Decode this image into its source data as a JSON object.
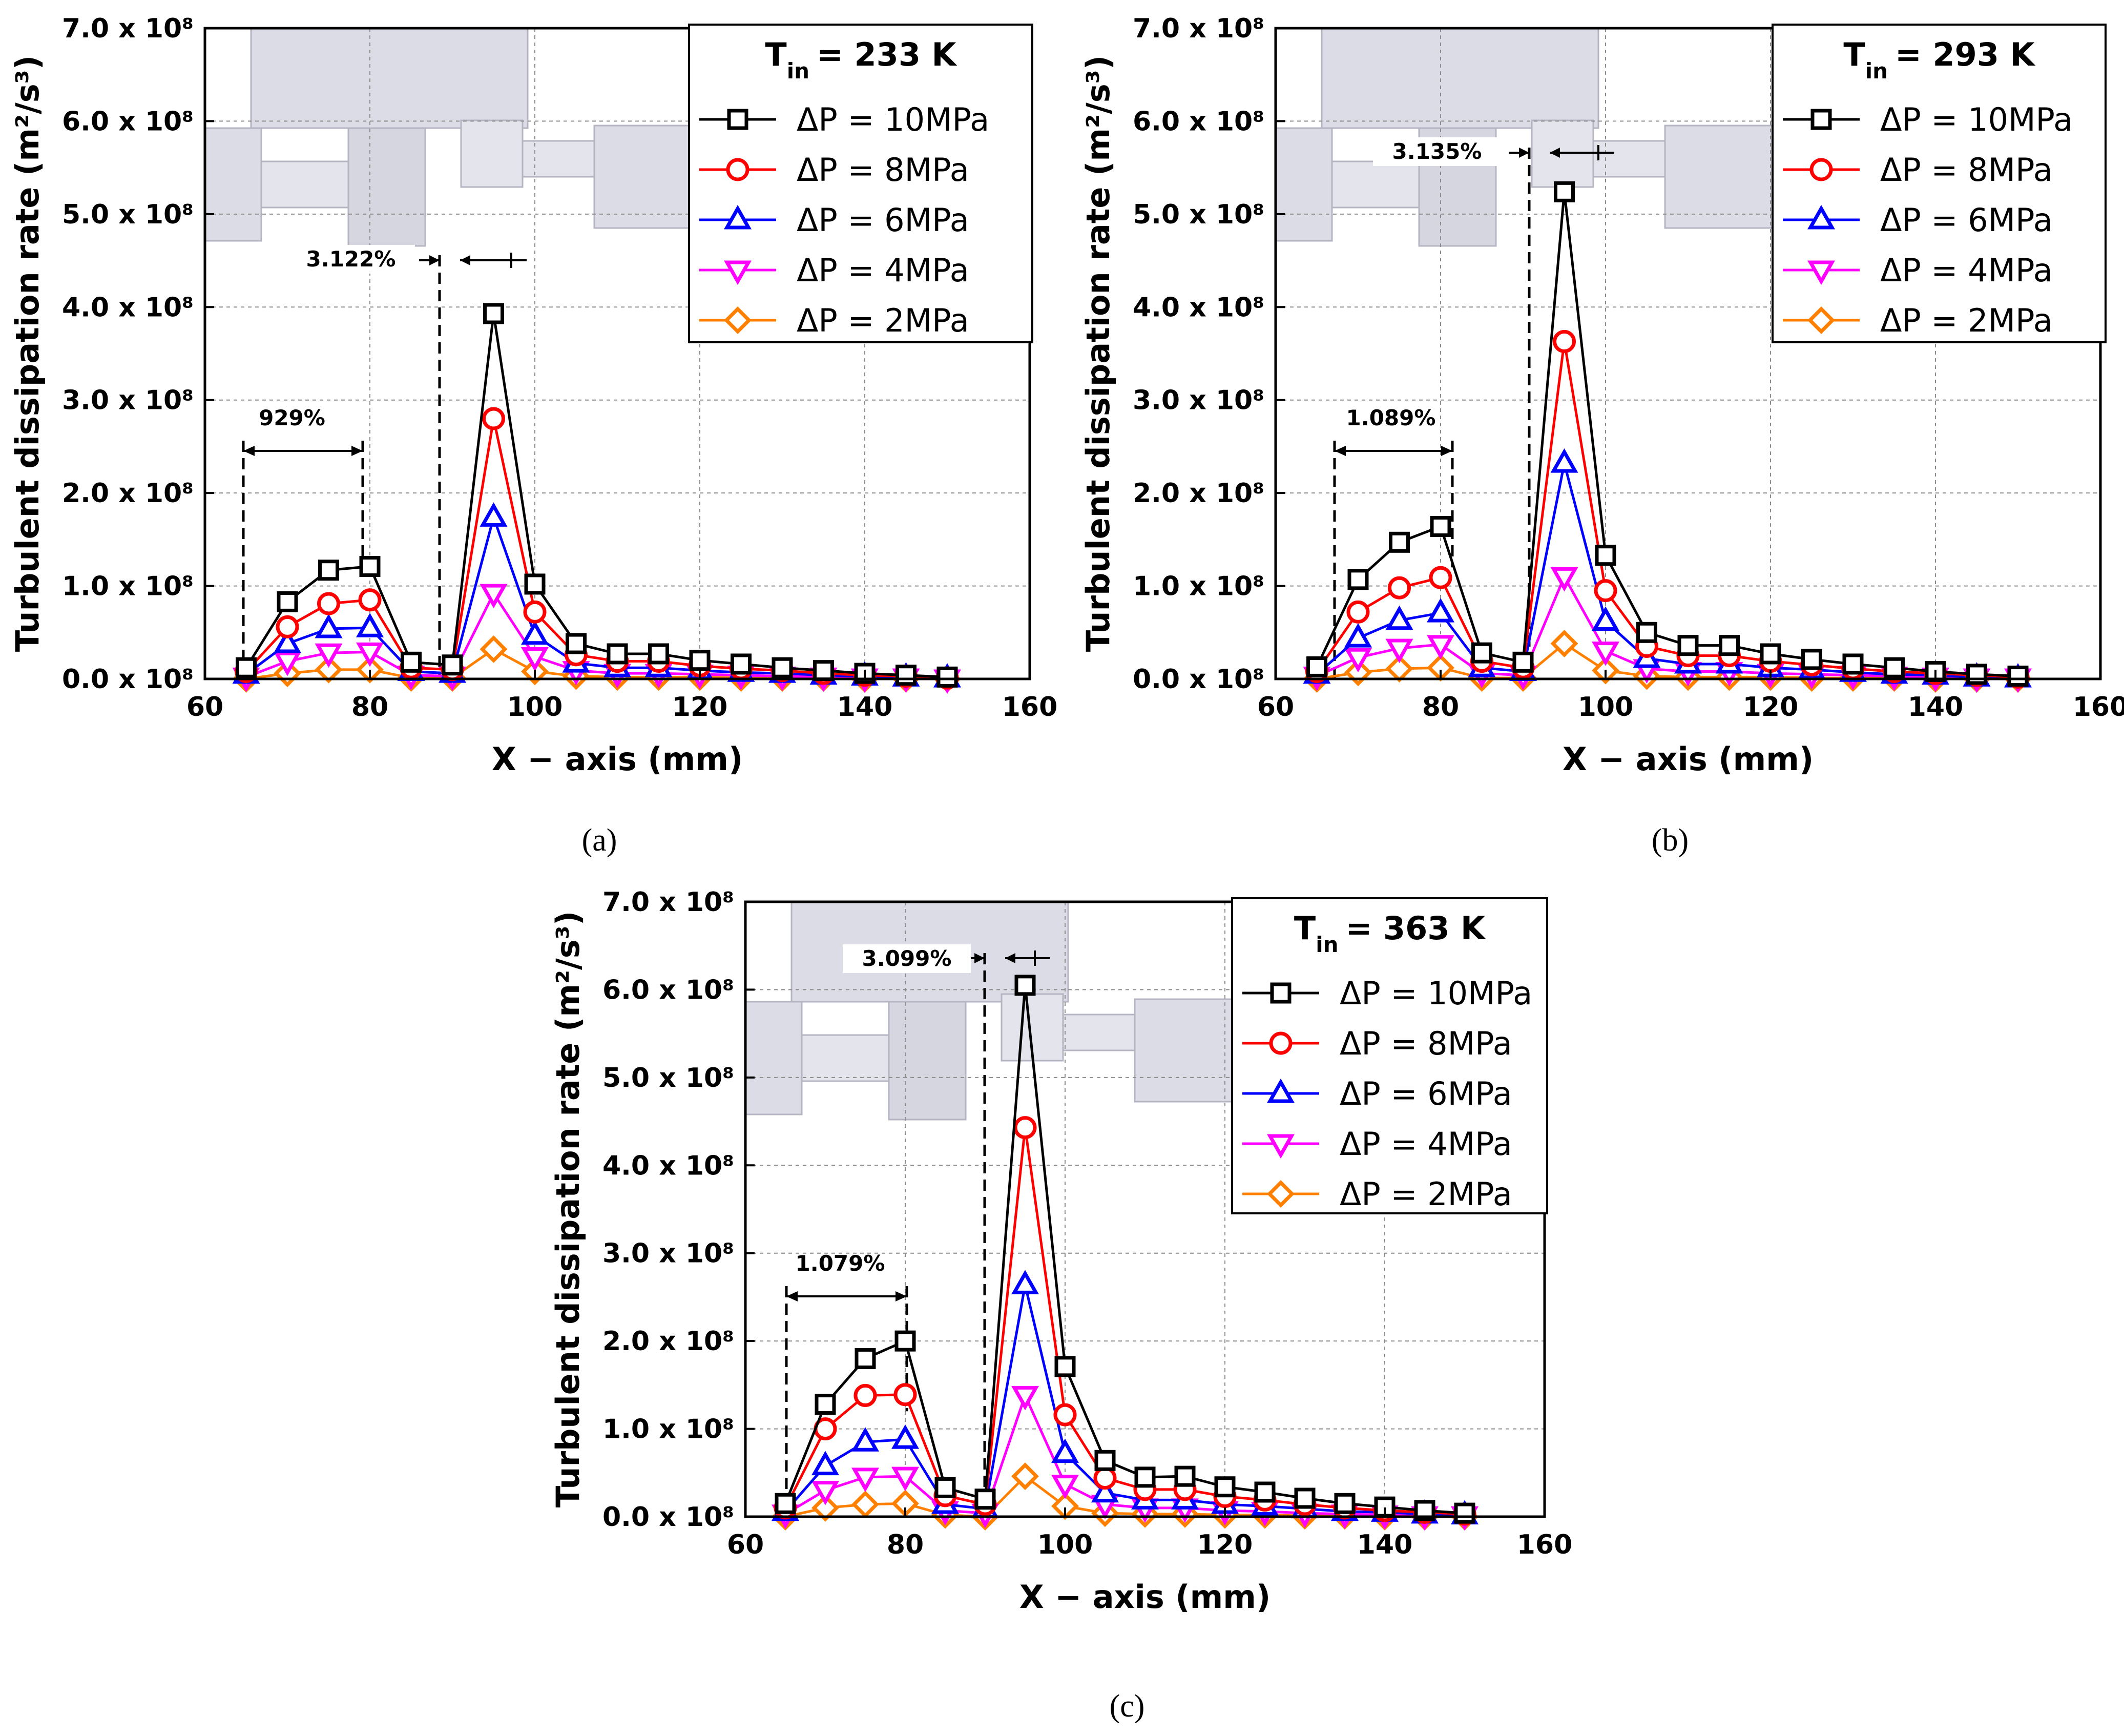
{
  "shared": {
    "ylabel": "Turbulent dissipation rate (m²/s³)",
    "xlabel": "X − axis (mm)",
    "xticks": [
      60,
      80,
      100,
      120,
      140,
      160
    ],
    "yticks": [
      0,
      1,
      2,
      3,
      4,
      5,
      6,
      7
    ],
    "ytick_labels": [
      "0.0 x 10⁸",
      "1.0 x 10⁸",
      "2.0 x 10⁸",
      "3.0 x 10⁸",
      "4.0 x 10⁸",
      "5.0 x 10⁸",
      "6.0 x 10⁸",
      "7.0 x 10⁸"
    ],
    "legend_title_prefix": "T",
    "legend_title_subscript": "in",
    "legend": [
      {
        "label": "ΔP = 10MPa",
        "color": "#000000",
        "marker": "square"
      },
      {
        "label": "ΔP = 8MPa",
        "color": "#ff0000",
        "marker": "circle"
      },
      {
        "label": "ΔP = 6MPa",
        "color": "#0000ff",
        "marker": "triangle-up"
      },
      {
        "label": "ΔP = 4MPa",
        "color": "#ff00ff",
        "marker": "triangle-down"
      },
      {
        "label": "ΔP = 2MPa",
        "color": "#ff8000",
        "marker": "diamond"
      }
    ]
  },
  "chart_data": [
    {
      "type": "line",
      "caption": "(a)",
      "legend_title_value": "= 233 K",
      "annotations": [
        "929%",
        "3.122%"
      ],
      "xlabel": "X − axis (mm)",
      "ylabel": "Turbulent dissipation rate (m²/s³)",
      "xlim": [
        60,
        160
      ],
      "ylim": [
        0,
        7
      ],
      "y_unit": "x 10⁸",
      "x": [
        65,
        70,
        75,
        80,
        85,
        90,
        95,
        100,
        105,
        110,
        115,
        120,
        125,
        130,
        135,
        140,
        145,
        150
      ],
      "series": [
        {
          "name": "ΔP = 10MPa",
          "values": [
            0.12,
            0.83,
            1.17,
            1.21,
            0.18,
            0.15,
            3.93,
            1.02,
            0.38,
            0.27,
            0.27,
            0.2,
            0.16,
            0.12,
            0.09,
            0.06,
            0.04,
            0.02
          ]
        },
        {
          "name": "ΔP = 8MPa",
          "values": [
            0.08,
            0.56,
            0.81,
            0.85,
            0.12,
            0.1,
            2.8,
            0.72,
            0.26,
            0.19,
            0.19,
            0.14,
            0.11,
            0.09,
            0.06,
            0.04,
            0.03,
            0.01
          ]
        },
        {
          "name": "ΔP = 6MPa",
          "values": [
            0.05,
            0.38,
            0.54,
            0.55,
            0.08,
            0.06,
            1.74,
            0.47,
            0.17,
            0.12,
            0.12,
            0.09,
            0.07,
            0.06,
            0.04,
            0.03,
            0.02,
            0.01
          ]
        },
        {
          "name": "ΔP = 4MPa",
          "values": [
            0.02,
            0.19,
            0.28,
            0.29,
            0.04,
            0.03,
            0.92,
            0.24,
            0.09,
            0.06,
            0.06,
            0.05,
            0.04,
            0.03,
            0.02,
            0.01,
            0.01,
            0.0
          ]
        },
        {
          "name": "ΔP = 2MPa",
          "values": [
            0.0,
            0.06,
            0.1,
            0.1,
            0.01,
            0.01,
            0.32,
            0.08,
            0.03,
            0.02,
            0.02,
            0.02,
            0.01,
            0.01,
            0.01,
            0.0,
            0.0,
            0.0
          ]
        }
      ]
    },
    {
      "type": "line",
      "caption": "(b)",
      "legend_title_value": "= 293 K",
      "annotations": [
        "1.089%",
        "3.135%"
      ],
      "xlabel": "X − axis (mm)",
      "ylabel": "Turbulent dissipation rate (m²/s³)",
      "xlim": [
        60,
        160
      ],
      "ylim": [
        0,
        7
      ],
      "y_unit": "x 10⁸",
      "x": [
        65,
        70,
        75,
        80,
        85,
        90,
        95,
        100,
        105,
        110,
        115,
        120,
        125,
        130,
        135,
        140,
        145,
        150
      ],
      "series": [
        {
          "name": "ΔP = 10MPa",
          "values": [
            0.13,
            1.07,
            1.47,
            1.64,
            0.28,
            0.18,
            5.24,
            1.33,
            0.5,
            0.36,
            0.36,
            0.27,
            0.21,
            0.16,
            0.12,
            0.08,
            0.05,
            0.03
          ]
        },
        {
          "name": "ΔP = 8MPa",
          "values": [
            0.08,
            0.72,
            0.98,
            1.09,
            0.19,
            0.12,
            3.63,
            0.95,
            0.35,
            0.25,
            0.25,
            0.19,
            0.15,
            0.11,
            0.08,
            0.06,
            0.04,
            0.02
          ]
        },
        {
          "name": "ΔP = 6MPa",
          "values": [
            0.05,
            0.44,
            0.63,
            0.71,
            0.12,
            0.08,
            2.32,
            0.62,
            0.22,
            0.16,
            0.16,
            0.12,
            0.1,
            0.07,
            0.05,
            0.04,
            0.02,
            0.01
          ]
        },
        {
          "name": "ΔP = 4MPa",
          "values": [
            0.03,
            0.23,
            0.33,
            0.37,
            0.06,
            0.04,
            1.1,
            0.3,
            0.11,
            0.08,
            0.08,
            0.06,
            0.05,
            0.04,
            0.03,
            0.02,
            0.01,
            0.01
          ]
        },
        {
          "name": "ΔP = 2MPa",
          "values": [
            0.0,
            0.07,
            0.11,
            0.12,
            0.01,
            0.01,
            0.38,
            0.09,
            0.03,
            0.02,
            0.02,
            0.02,
            0.01,
            0.01,
            0.01,
            0.0,
            0.0,
            0.0
          ]
        }
      ]
    },
    {
      "type": "line",
      "caption": "(c)",
      "legend_title_value": "= 363 K",
      "annotations": [
        "1.079%",
        "3.099%"
      ],
      "xlabel": "X − axis (mm)",
      "ylabel": "Turbulent dissipation rate (m²/s³)",
      "xlim": [
        60,
        160
      ],
      "ylim": [
        0,
        7
      ],
      "y_unit": "x 10⁸",
      "x": [
        65,
        70,
        75,
        80,
        85,
        90,
        95,
        100,
        105,
        110,
        115,
        120,
        125,
        130,
        135,
        140,
        145,
        150
      ],
      "series": [
        {
          "name": "ΔP = 10MPa",
          "values": [
            0.15,
            1.28,
            1.8,
            2.0,
            0.33,
            0.2,
            6.05,
            1.71,
            0.64,
            0.45,
            0.46,
            0.34,
            0.28,
            0.21,
            0.15,
            0.11,
            0.07,
            0.04
          ]
        },
        {
          "name": "ΔP = 8MPa",
          "values": [
            0.1,
            1.0,
            1.38,
            1.39,
            0.24,
            0.14,
            4.43,
            1.16,
            0.44,
            0.31,
            0.31,
            0.23,
            0.19,
            0.14,
            0.1,
            0.07,
            0.05,
            0.03
          ]
        },
        {
          "name": "ΔP = 6MPa",
          "values": [
            0.06,
            0.58,
            0.85,
            0.88,
            0.14,
            0.09,
            2.64,
            0.72,
            0.27,
            0.19,
            0.19,
            0.14,
            0.12,
            0.09,
            0.06,
            0.05,
            0.03,
            0.02
          ]
        },
        {
          "name": "ΔP = 4MPa",
          "values": [
            0.03,
            0.3,
            0.45,
            0.46,
            0.07,
            0.04,
            1.38,
            0.37,
            0.14,
            0.1,
            0.1,
            0.07,
            0.06,
            0.04,
            0.03,
            0.02,
            0.01,
            0.01
          ]
        },
        {
          "name": "ΔP = 2MPa",
          "values": [
            0.0,
            0.1,
            0.14,
            0.15,
            0.02,
            0.0,
            0.46,
            0.12,
            0.04,
            0.03,
            0.03,
            0.02,
            0.02,
            0.01,
            0.01,
            0.0,
            0.0,
            0.0
          ]
        }
      ]
    }
  ]
}
